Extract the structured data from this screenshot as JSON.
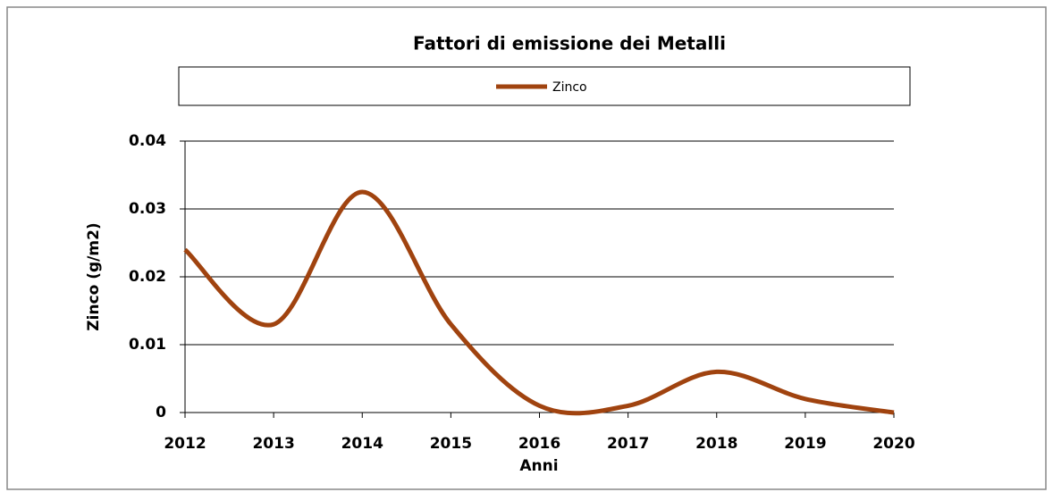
{
  "chart_data": {
    "type": "line",
    "title": "Fattori di emissione dei Metalli",
    "x_label": "Anni",
    "y_label": "Zinco  (g/m2)",
    "x": [
      2012,
      2013,
      2014,
      2015,
      2016,
      2017,
      2018,
      2019,
      2020
    ],
    "series": [
      {
        "name": "Zinco",
        "color": "#a0430f",
        "values": [
          0.024,
          0.013,
          0.0325,
          0.013,
          0.001,
          0.001,
          0.006,
          0.002,
          0
        ]
      }
    ],
    "xlim": [
      2012,
      2020
    ],
    "xticks": [
      2012,
      2013,
      2014,
      2015,
      2016,
      2017,
      2018,
      2019,
      2020
    ],
    "ylim": [
      0,
      0.04
    ],
    "yticks": [
      0,
      0.01,
      0.02,
      0.03,
      0.04
    ],
    "grid": true,
    "smooth": true,
    "legend": "top"
  }
}
